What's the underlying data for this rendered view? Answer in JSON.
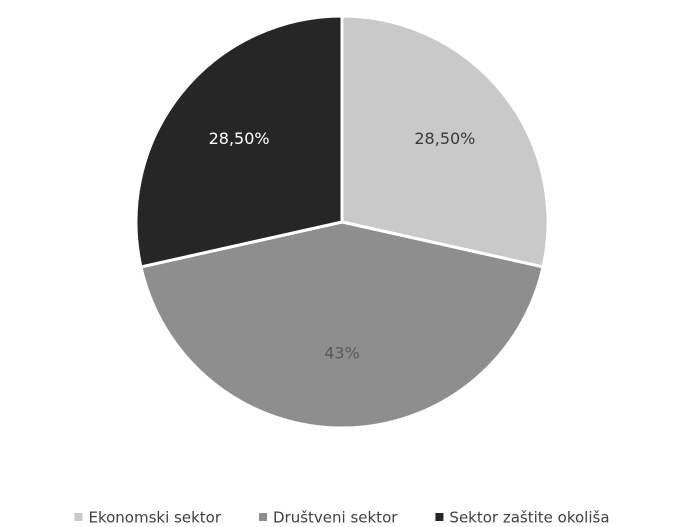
{
  "chart_data": {
    "type": "pie",
    "categories": [
      "Ekonomski sektor",
      "Društveni sektor",
      "Sektor zaštite okoliša"
    ],
    "values": [
      28.5,
      43,
      28.5
    ],
    "value_labels": [
      "28,50%",
      "43%",
      "28,50%"
    ],
    "colors": [
      "#c9c9c9",
      "#8e8e8e",
      "#262626"
    ],
    "label_colors": [
      "#3a3a3a",
      "#5a5a5a",
      "#ffffff"
    ],
    "legend": "bottom"
  }
}
